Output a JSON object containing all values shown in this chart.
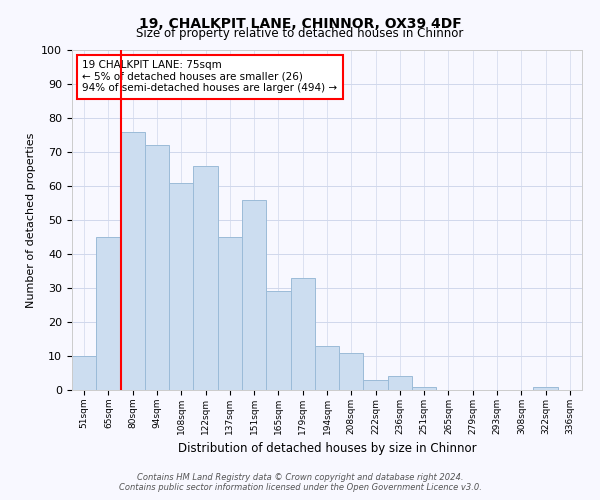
{
  "title1": "19, CHALKPIT LANE, CHINNOR, OX39 4DF",
  "title2": "Size of property relative to detached houses in Chinnor",
  "xlabel": "Distribution of detached houses by size in Chinnor",
  "ylabel": "Number of detached properties",
  "bin_labels": [
    "51sqm",
    "65sqm",
    "80sqm",
    "94sqm",
    "108sqm",
    "122sqm",
    "137sqm",
    "151sqm",
    "165sqm",
    "179sqm",
    "194sqm",
    "208sqm",
    "222sqm",
    "236sqm",
    "251sqm",
    "265sqm",
    "279sqm",
    "293sqm",
    "308sqm",
    "322sqm",
    "336sqm"
  ],
  "bar_heights": [
    10,
    45,
    76,
    72,
    61,
    66,
    45,
    56,
    29,
    33,
    13,
    11,
    3,
    4,
    1,
    0,
    0,
    0,
    0,
    1,
    0
  ],
  "bar_color": "#ccddf0",
  "bar_edge_color": "#9bbbd8",
  "vline_color": "red",
  "vline_x": 1.5,
  "annotation_title": "19 CHALKPIT LANE: 75sqm",
  "annotation_line1": "← 5% of detached houses are smaller (26)",
  "annotation_line2": "94% of semi-detached houses are larger (494) →",
  "annotation_box_color": "white",
  "annotation_box_edge": "red",
  "ylim": [
    0,
    100
  ],
  "yticks": [
    0,
    10,
    20,
    30,
    40,
    50,
    60,
    70,
    80,
    90,
    100
  ],
  "footer1": "Contains HM Land Registry data © Crown copyright and database right 2024.",
  "footer2": "Contains public sector information licensed under the Open Government Licence v3.0.",
  "bg_color": "#f8f8ff",
  "grid_color": "#d0d8ec"
}
